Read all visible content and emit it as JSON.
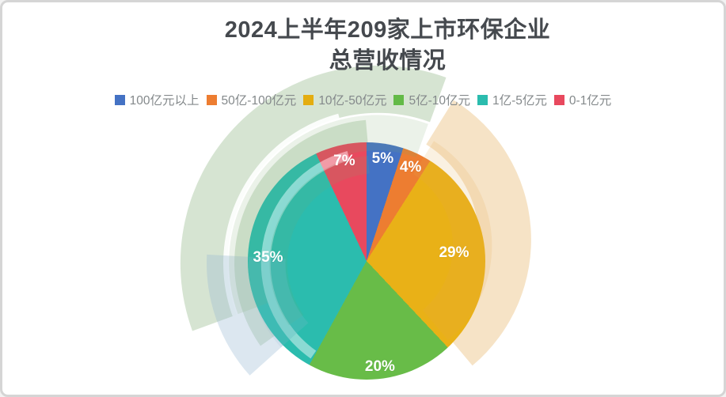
{
  "title": {
    "line1": "2024上半年209家上市环保企业",
    "line2": "总营收情况",
    "color": "#45494e"
  },
  "legend": [
    {
      "label": "100亿元以上",
      "color": "#4472c4"
    },
    {
      "label": "50亿-100亿元",
      "color": "#ed7d31"
    },
    {
      "label": "10亿-50亿元",
      "color": "#e4ad10"
    },
    {
      "label": "5亿-10亿元",
      "color": "#63ba47"
    },
    {
      "label": "1亿-5亿元",
      "color": "#2bbcae"
    },
    {
      "label": "0-1亿元",
      "color": "#e8495e"
    }
  ],
  "chart_data": {
    "type": "pie",
    "title": "2024上半年209家上市环保企业总营收情况",
    "categories": [
      "100亿元以上",
      "50亿-100亿元",
      "10亿-50亿元",
      "5亿-10亿元",
      "1亿-5亿元",
      "0-1亿元"
    ],
    "values": [
      5,
      4,
      29,
      20,
      35,
      7
    ],
    "unit": "%",
    "labels": [
      "5%",
      "4%",
      "29%",
      "20%",
      "35%",
      "7%"
    ],
    "colors": [
      "#4472c4",
      "#ed7d31",
      "#e9b117",
      "#68bc48",
      "#2bbcae",
      "#e8495e"
    ],
    "start_angle_deg": 0,
    "direction": "clockwise",
    "legend_position": "top",
    "label_radius": [
      0.87,
      0.87,
      0.74,
      0.9,
      0.83,
      0.86
    ]
  },
  "watermark": {
    "petals": [
      {
        "name": "leaf-green-outer",
        "color": "#76a76b"
      },
      {
        "name": "leaf-white-swoosh",
        "color": "#ffffff"
      },
      {
        "name": "leaf-green-inner",
        "color": "#76a76b"
      },
      {
        "name": "leaf-beige",
        "color": "#e3a94f"
      },
      {
        "name": "leaf-blue",
        "color": "#9bbbd4"
      }
    ]
  }
}
